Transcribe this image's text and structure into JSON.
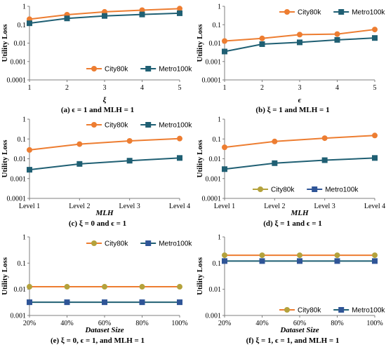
{
  "colors": {
    "city": "#ED7D31",
    "metro": "#1F5F73",
    "city_olive": "#B4A23C",
    "metro_blue": "#2F5597",
    "axis": "#7f7f7f",
    "grid": "#d9d9d9"
  },
  "chart_data": [
    {
      "id": "a",
      "type": "line",
      "caption": "(a) ϵ = 1 and MLH = 1",
      "x": [
        "1",
        "2",
        "3",
        "4",
        "5"
      ],
      "xlabel": "ξ",
      "ylabel": "Utility Loss",
      "yscale": "log",
      "ylim": [
        0.0001,
        1
      ],
      "yticks": [
        "0.0001",
        "0.001",
        "0.01",
        "0.1",
        "1"
      ],
      "legend_position": "bottom-right",
      "series": [
        {
          "name": "City80k",
          "values": [
            0.2,
            0.35,
            0.5,
            0.62,
            0.75
          ],
          "color_key": "city",
          "marker": "circle"
        },
        {
          "name": "Metro100k",
          "values": [
            0.12,
            0.22,
            0.3,
            0.36,
            0.42
          ],
          "color_key": "metro",
          "marker": "square"
        }
      ]
    },
    {
      "id": "b",
      "type": "line",
      "caption": "(b) ξ = 1 and MLH = 1",
      "x": [
        "1",
        "2",
        "3",
        "4",
        "5"
      ],
      "xlabel": "ϵ",
      "ylabel": "Utility Loss",
      "yscale": "log",
      "ylim": [
        0.0001,
        1
      ],
      "yticks": [
        "0.0001",
        "0.001",
        "0.01",
        "0.1",
        "1"
      ],
      "legend_position": "top-right",
      "series": [
        {
          "name": "City80k",
          "values": [
            0.013,
            0.018,
            0.029,
            0.031,
            0.055
          ],
          "color_key": "city",
          "marker": "circle"
        },
        {
          "name": "Metro100k",
          "values": [
            0.0035,
            0.0088,
            0.011,
            0.015,
            0.019
          ],
          "color_key": "metro",
          "marker": "square"
        }
      ]
    },
    {
      "id": "c",
      "type": "line",
      "caption": "(c) ξ = 0 and ϵ = 1",
      "x": [
        "Level 1",
        "Level 2",
        "Level 3",
        "Level 4"
      ],
      "xlabel": "MLH",
      "ylabel": "Utility Loss",
      "yscale": "log",
      "ylim": [
        0.0001,
        1
      ],
      "yticks": [
        "0.0001",
        "0.001",
        "0.01",
        "0.1",
        "1"
      ],
      "legend_position": "top-right",
      "series": [
        {
          "name": "City80k",
          "values": [
            0.028,
            0.055,
            0.08,
            0.105
          ],
          "color_key": "city",
          "marker": "circle"
        },
        {
          "name": "Metro100k",
          "values": [
            0.0028,
            0.0055,
            0.008,
            0.011
          ],
          "color_key": "metro",
          "marker": "square"
        }
      ]
    },
    {
      "id": "d",
      "type": "line",
      "caption": "(d) ξ = 1 and ϵ = 1",
      "x": [
        "Level 1",
        "Level 2",
        "Level 3",
        "Level 4"
      ],
      "xlabel": "MLH",
      "ylabel": "Utility Loss",
      "yscale": "log",
      "ylim": [
        0.0001,
        1
      ],
      "yticks": [
        "0.0001",
        "0.001",
        "0.01",
        "0.1",
        "1"
      ],
      "legend_position": "bottom-right",
      "series": [
        {
          "name": "City80k",
          "values": [
            0.038,
            0.075,
            0.11,
            0.15
          ],
          "color_key": "city",
          "marker": "circle",
          "legend_color_key": "city_olive"
        },
        {
          "name": "Metro100k",
          "values": [
            0.003,
            0.006,
            0.0085,
            0.011
          ],
          "color_key": "metro",
          "marker": "square",
          "legend_color_key": "metro_blue"
        }
      ]
    },
    {
      "id": "e",
      "type": "line",
      "caption": "(e) ξ = 0, ϵ = 1, and MLH = 1",
      "x": [
        "20%",
        "40%",
        "60%",
        "80%",
        "100%"
      ],
      "xlabel": "Dataset Size",
      "ylabel": "Utility Loss",
      "yscale": "log",
      "ylim": [
        0.001,
        1
      ],
      "yticks": [
        "0.001",
        "0.01",
        "0.1",
        "1"
      ],
      "legend_position": "top-right",
      "series": [
        {
          "name": "City80k",
          "values": [
            0.0125,
            0.0125,
            0.0125,
            0.0125,
            0.0125
          ],
          "color_key": "city_olive",
          "line_color_key": "city",
          "marker": "circle"
        },
        {
          "name": "Metro100k",
          "values": [
            0.0032,
            0.0032,
            0.0032,
            0.0032,
            0.0032
          ],
          "color_key": "metro_blue",
          "line_color_key": "metro",
          "marker": "square"
        }
      ]
    },
    {
      "id": "f",
      "type": "line",
      "caption": "(f) ξ = 1, ϵ = 1, and MLH = 1",
      "x": [
        "20%",
        "40%",
        "60%",
        "80%",
        "100%"
      ],
      "xlabel": "Dataset Size",
      "ylabel": "Utility Loss",
      "yscale": "log",
      "ylim": [
        0.001,
        1
      ],
      "yticks": [
        "0.001",
        "0.01",
        "0.1",
        "1"
      ],
      "legend_position": "bottom-right",
      "series": [
        {
          "name": "City80k",
          "values": [
            0.2,
            0.2,
            0.2,
            0.2,
            0.2
          ],
          "color_key": "city_olive",
          "line_color_key": "city",
          "marker": "circle"
        },
        {
          "name": "Metro100k",
          "values": [
            0.12,
            0.12,
            0.12,
            0.12,
            0.12
          ],
          "color_key": "metro_blue",
          "line_color_key": "metro",
          "marker": "square"
        }
      ]
    }
  ]
}
